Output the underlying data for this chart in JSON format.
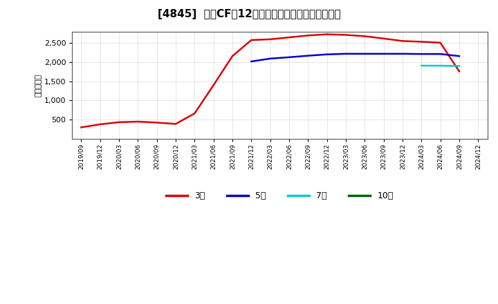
{
  "title": "[4845]  投資CFだ12か月移動合計の標準偏差の推移",
  "ylabel": "（百万円）",
  "background_color": "#ffffff",
  "plot_bg_color": "#ffffff",
  "grid_color": "#aaaaaa",
  "ylim": [
    0,
    2800
  ],
  "yticks": [
    500,
    1000,
    1500,
    2000,
    2500
  ],
  "ytick_labels": [
    "500",
    "1,000",
    "1,500",
    "2,000",
    "2,500"
  ],
  "series": {
    "3年": {
      "color": "#dd0000",
      "dates": [
        "2019/09",
        "2019/12",
        "2020/03",
        "2020/06",
        "2020/09",
        "2020/12",
        "2021/03",
        "2021/06",
        "2021/09",
        "2021/12",
        "2022/03",
        "2022/06",
        "2022/09",
        "2022/12",
        "2023/03",
        "2023/06",
        "2023/09",
        "2023/12",
        "2024/03",
        "2024/06",
        "2024/09"
      ],
      "values": [
        295,
        375,
        430,
        445,
        420,
        385,
        660,
        1400,
        2160,
        2580,
        2600,
        2650,
        2700,
        2730,
        2715,
        2680,
        2620,
        2555,
        2535,
        2510,
        1760
      ]
    },
    "5年": {
      "color": "#0000cc",
      "dates": [
        "2021/12",
        "2022/03",
        "2022/06",
        "2022/09",
        "2022/12",
        "2023/03",
        "2023/06",
        "2023/09",
        "2023/12",
        "2024/03",
        "2024/06",
        "2024/09"
      ],
      "values": [
        2020,
        2095,
        2130,
        2170,
        2205,
        2220,
        2220,
        2220,
        2220,
        2215,
        2215,
        2160
      ]
    },
    "7年": {
      "color": "#00cccc",
      "dates": [
        "2024/03",
        "2024/06",
        "2024/09"
      ],
      "values": [
        1910,
        1910,
        1900
      ]
    },
    "10年": {
      "color": "#006600",
      "dates": [],
      "values": []
    }
  },
  "legend_labels": [
    "3年",
    "5年",
    "7年",
    "10年"
  ],
  "legend_colors": [
    "#dd0000",
    "#0000cc",
    "#00cccc",
    "#006600"
  ],
  "x_labels": [
    "2019/09",
    "2019/12",
    "2020/03",
    "2020/06",
    "2020/09",
    "2020/12",
    "2021/03",
    "2021/06",
    "2021/09",
    "2021/12",
    "2022/03",
    "2022/06",
    "2022/09",
    "2022/12",
    "2023/03",
    "2023/06",
    "2023/09",
    "2023/12",
    "2024/03",
    "2024/06",
    "2024/09",
    "2024/12"
  ]
}
